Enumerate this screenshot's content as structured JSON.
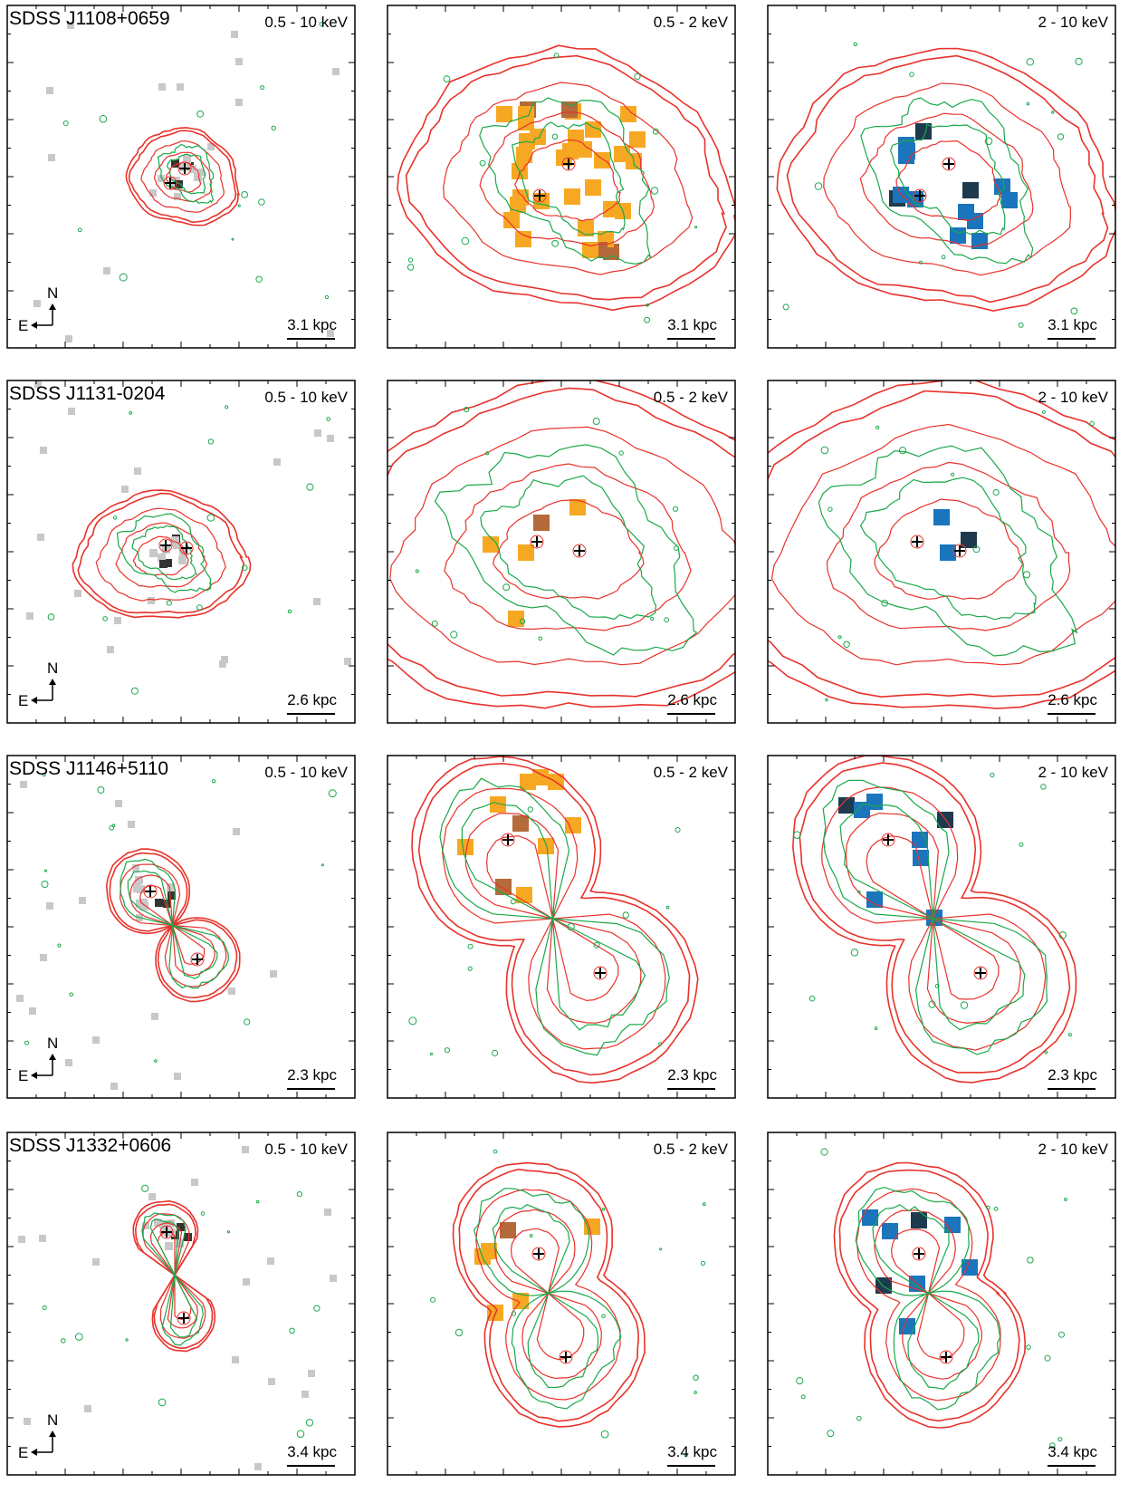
{
  "figure": {
    "panel_bands": [
      "0.5 - 10 keV",
      "0.5 - 2 keV",
      "2 - 10 keV"
    ],
    "compass": {
      "north": "N",
      "east": "E"
    },
    "colors": {
      "frame": "#000000",
      "red_contour": "#e8322b",
      "green_contour": "#1aa84b",
      "soft_pixel": "#f7a823",
      "soft_pixel_dark": "#b46a3a",
      "hard_pixel": "#1a75bc",
      "hard_pixel_dark": "#1d3a4f",
      "full_pixel": "#c8c8c8",
      "full_pixel_dark": "#333333"
    },
    "rows": [
      {
        "name": "SDSS J1108+0659",
        "scale": "3.1 kpc"
      },
      {
        "name": "SDSS J1131-0204",
        "scale": "2.6 kpc"
      },
      {
        "name": "SDSS J1146+5110",
        "scale": "2.3 kpc"
      },
      {
        "name": "SDSS J1332+0606",
        "scale": "3.4 kpc"
      }
    ]
  }
}
